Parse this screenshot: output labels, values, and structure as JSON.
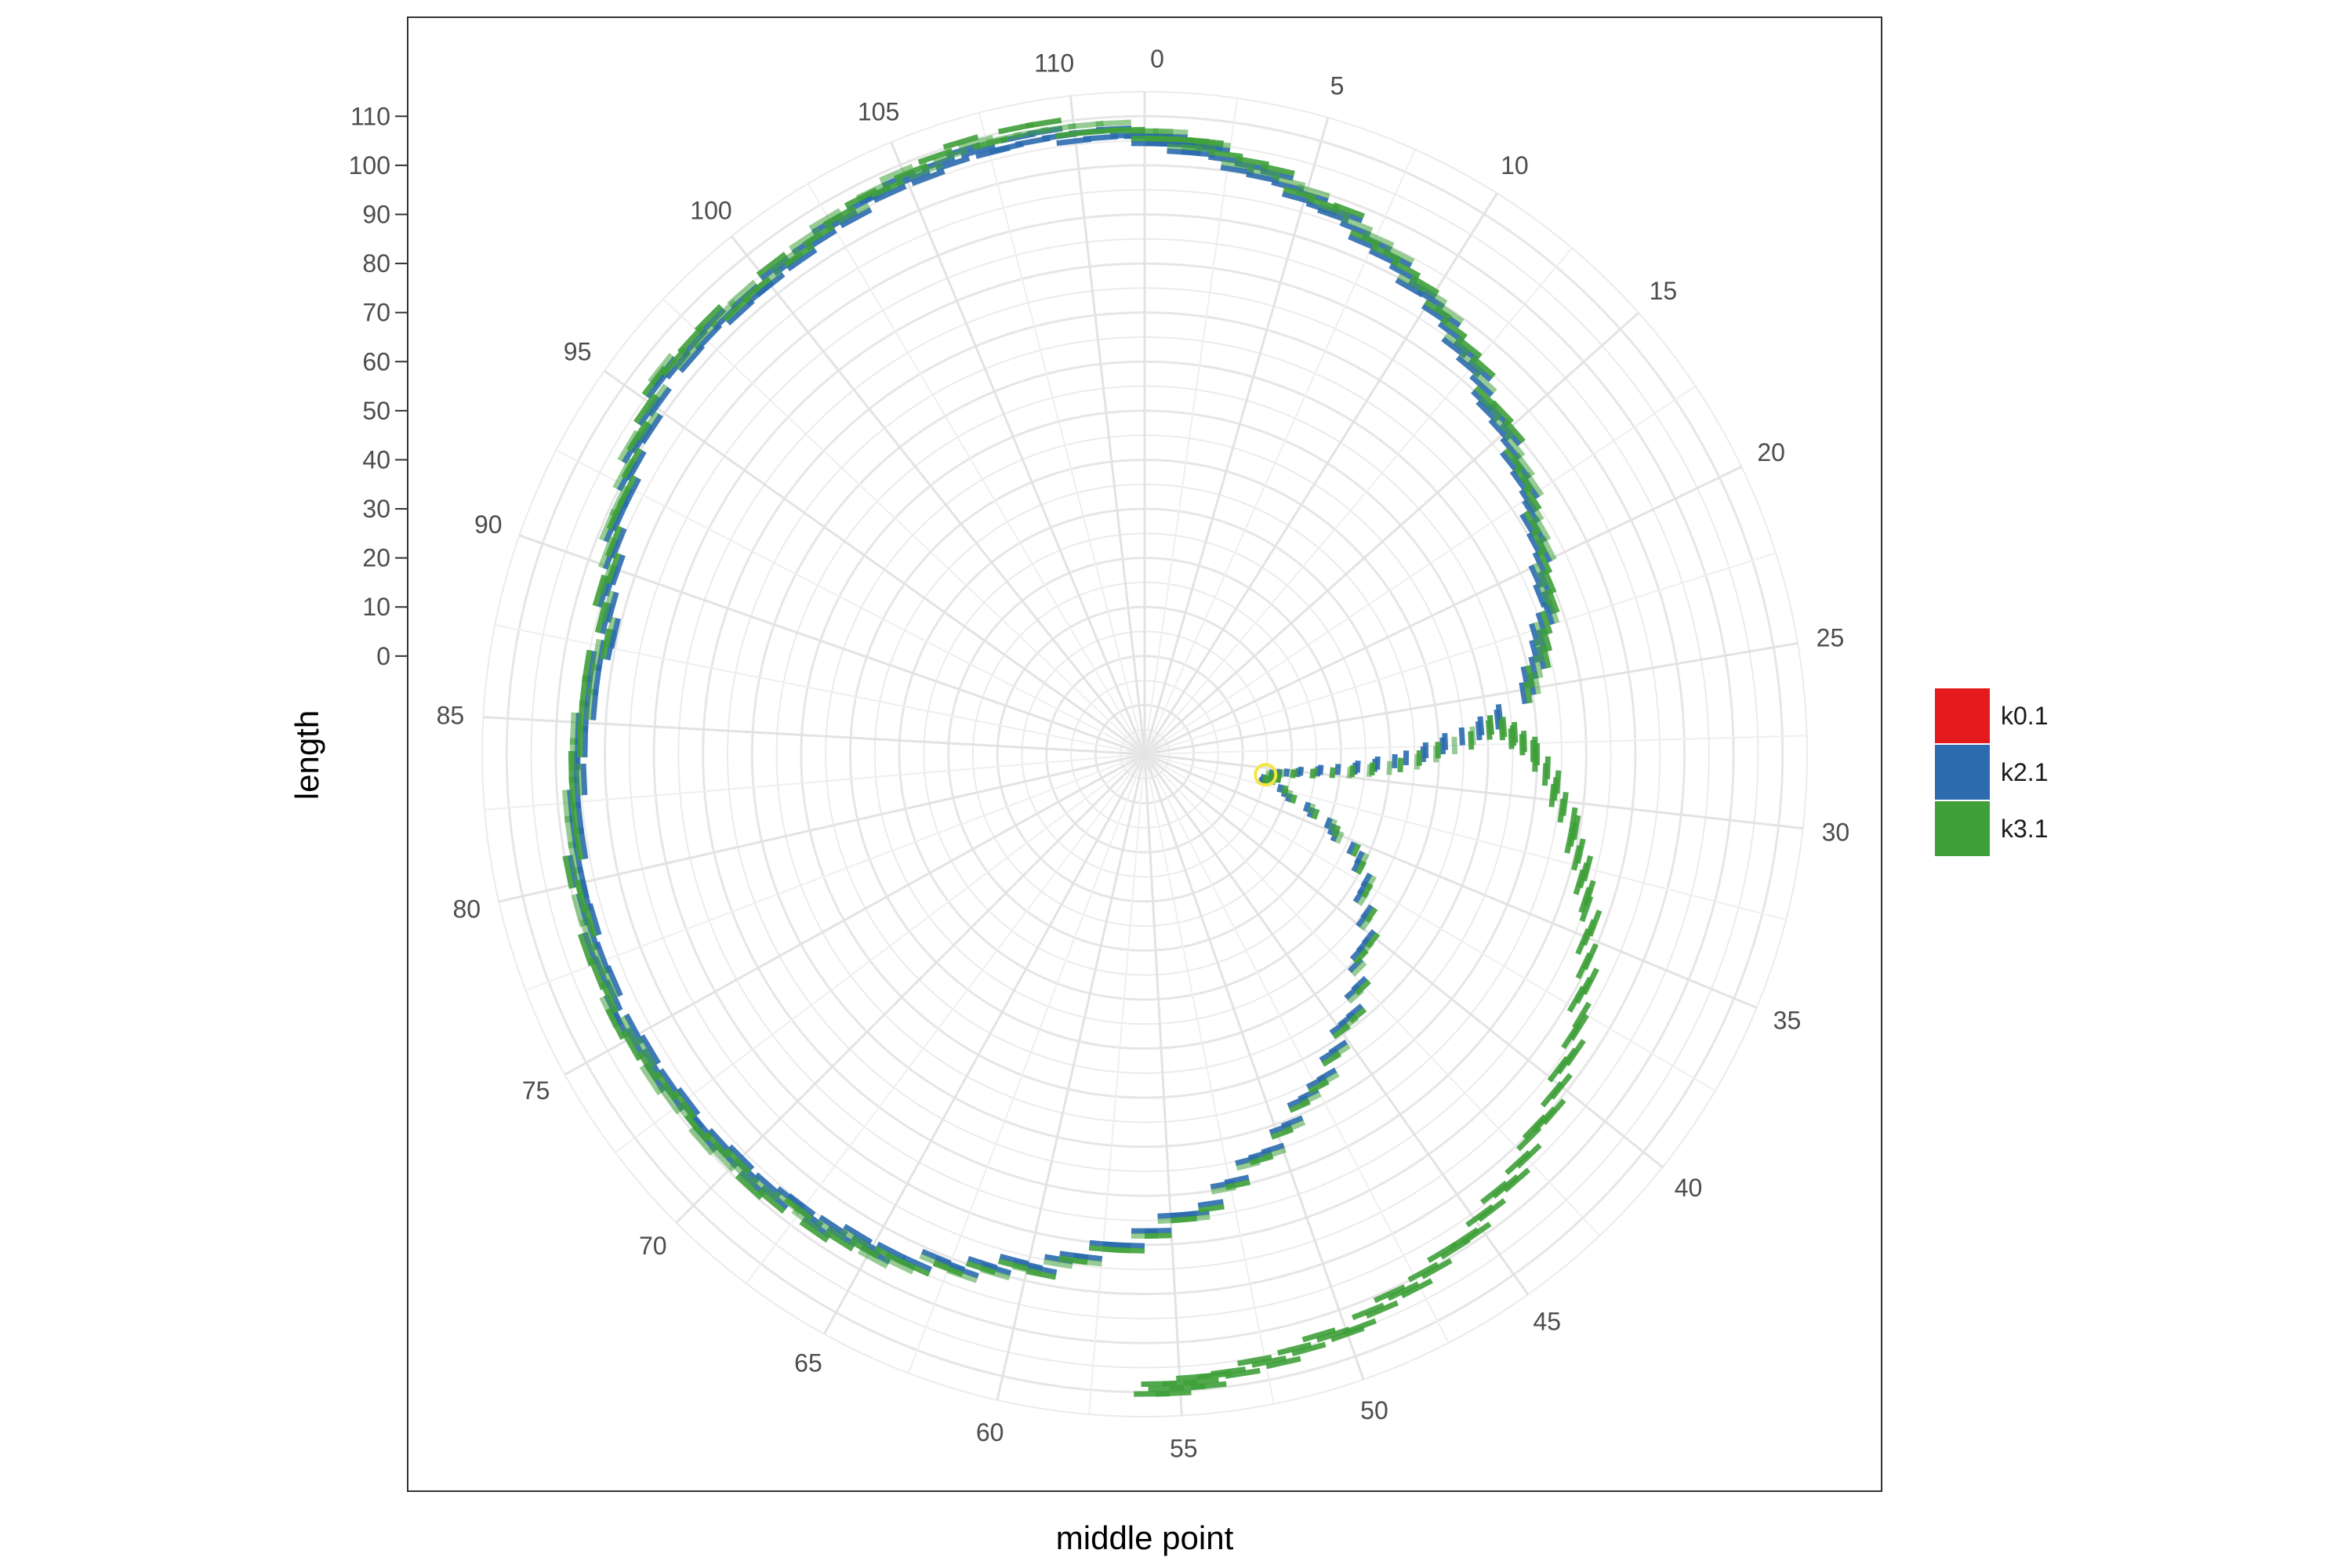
{
  "chart_data": {
    "type": "radial-bar",
    "title": "",
    "xlabel": "middle point",
    "ylabel": "length",
    "angle_ticks": [
      "0",
      "5",
      "10",
      "15",
      "20",
      "25",
      "30",
      "35",
      "40",
      "45",
      "50",
      "55",
      "60",
      "65",
      "70",
      "75",
      "80",
      "85",
      "90",
      "95",
      "100",
      "105",
      "110"
    ],
    "angle_range": [
      0,
      112
    ],
    "radius_range": [
      -20,
      115
    ],
    "radius_ticks": [
      "0",
      "10",
      "20",
      "30",
      "40",
      "50",
      "60",
      "70",
      "80",
      "90",
      "100",
      "110"
    ],
    "grid": true,
    "legend_placement": "right",
    "legend": [
      {
        "name": "k0.1",
        "color": "#E41A1C"
      },
      {
        "name": "k2.1",
        "color": "#2B6BAE"
      },
      {
        "name": "k3.1",
        "color": "#3FA03A"
      }
    ],
    "highlight_point": {
      "angle": 31,
      "radius": 5,
      "color": "#F5E642"
    },
    "series": [
      {
        "name": "k2.1",
        "color": "#2B6BAE",
        "points": [
          {
            "angle": 26,
            "radius": 54
          },
          {
            "angle": 28.5,
            "radius": 31
          },
          {
            "angle": 30.3,
            "radius": 8
          },
          {
            "angle": 32,
            "radius": 5
          },
          {
            "angle": 36,
            "radius": 28
          },
          {
            "angle": 42,
            "radius": 42
          },
          {
            "angle": 48,
            "radius": 57
          },
          {
            "angle": 54,
            "radius": 73
          },
          {
            "angle": 59,
            "radius": 85
          },
          {
            "angle": 64,
            "radius": 94
          },
          {
            "angle": 68,
            "radius": 97
          },
          {
            "angle": 72,
            "radius": 98
          },
          {
            "angle": 76,
            "radius": 99
          },
          {
            "angle": 80,
            "radius": 98
          },
          {
            "angle": 84,
            "radius": 95
          },
          {
            "angle": 88,
            "radius": 92
          },
          {
            "angle": 92,
            "radius": 98
          },
          {
            "angle": 96,
            "radius": 104
          },
          {
            "angle": 100,
            "radius": 103
          },
          {
            "angle": 104,
            "radius": 106
          },
          {
            "angle": 108,
            "radius": 108
          },
          {
            "angle": 111.9,
            "radius": 106
          },
          {
            "angle": 2,
            "radius": 103
          },
          {
            "angle": 6,
            "radius": 97
          },
          {
            "angle": 10,
            "radius": 89
          },
          {
            "angle": 14,
            "radius": 80
          },
          {
            "angle": 18,
            "radius": 73
          },
          {
            "angle": 22,
            "radius": 66
          },
          {
            "angle": 25.5,
            "radius": 58
          }
        ]
      },
      {
        "name": "k3.1",
        "color": "#3FA03A",
        "points": [
          {
            "angle": 26.5,
            "radius": 52
          },
          {
            "angle": 29,
            "radius": 30
          },
          {
            "angle": 30.5,
            "radius": 7
          },
          {
            "angle": 32,
            "radius": 6
          },
          {
            "angle": 36,
            "radius": 29
          },
          {
            "angle": 42,
            "radius": 43
          },
          {
            "angle": 48,
            "radius": 58
          },
          {
            "angle": 54,
            "radius": 74
          },
          {
            "angle": 59,
            "radius": 86
          },
          {
            "angle": 64,
            "radius": 95
          },
          {
            "angle": 68,
            "radius": 98
          },
          {
            "angle": 72,
            "radius": 99
          },
          {
            "angle": 76,
            "radius": 100
          },
          {
            "angle": 80,
            "radius": 99
          },
          {
            "angle": 84,
            "radius": 96
          },
          {
            "angle": 88,
            "radius": 93
          },
          {
            "angle": 92,
            "radius": 99
          },
          {
            "angle": 96,
            "radius": 105
          },
          {
            "angle": 100,
            "radius": 104
          },
          {
            "angle": 104,
            "radius": 107
          },
          {
            "angle": 108,
            "radius": 110
          },
          {
            "angle": 111.9,
            "radius": 107
          },
          {
            "angle": 2,
            "radius": 104
          },
          {
            "angle": 6,
            "radius": 98
          },
          {
            "angle": 10,
            "radius": 90
          },
          {
            "angle": 14,
            "radius": 81
          },
          {
            "angle": 18,
            "radius": 74
          },
          {
            "angle": 22,
            "radius": 67
          },
          {
            "angle": 25.5,
            "radius": 59
          }
        ]
      },
      {
        "name": "k3.1",
        "color": "#3FA03A",
        "points": [
          {
            "angle": 26.5,
            "radius": 52
          },
          {
            "angle": 28,
            "radius": 60
          },
          {
            "angle": 31,
            "radius": 68
          },
          {
            "angle": 34,
            "radius": 76
          },
          {
            "angle": 38,
            "radius": 84
          },
          {
            "angle": 42,
            "radius": 92
          },
          {
            "angle": 46,
            "radius": 99
          },
          {
            "angle": 50,
            "radius": 104
          },
          {
            "angle": 54,
            "radius": 108
          },
          {
            "angle": 56,
            "radius": 110
          }
        ]
      }
    ]
  }
}
